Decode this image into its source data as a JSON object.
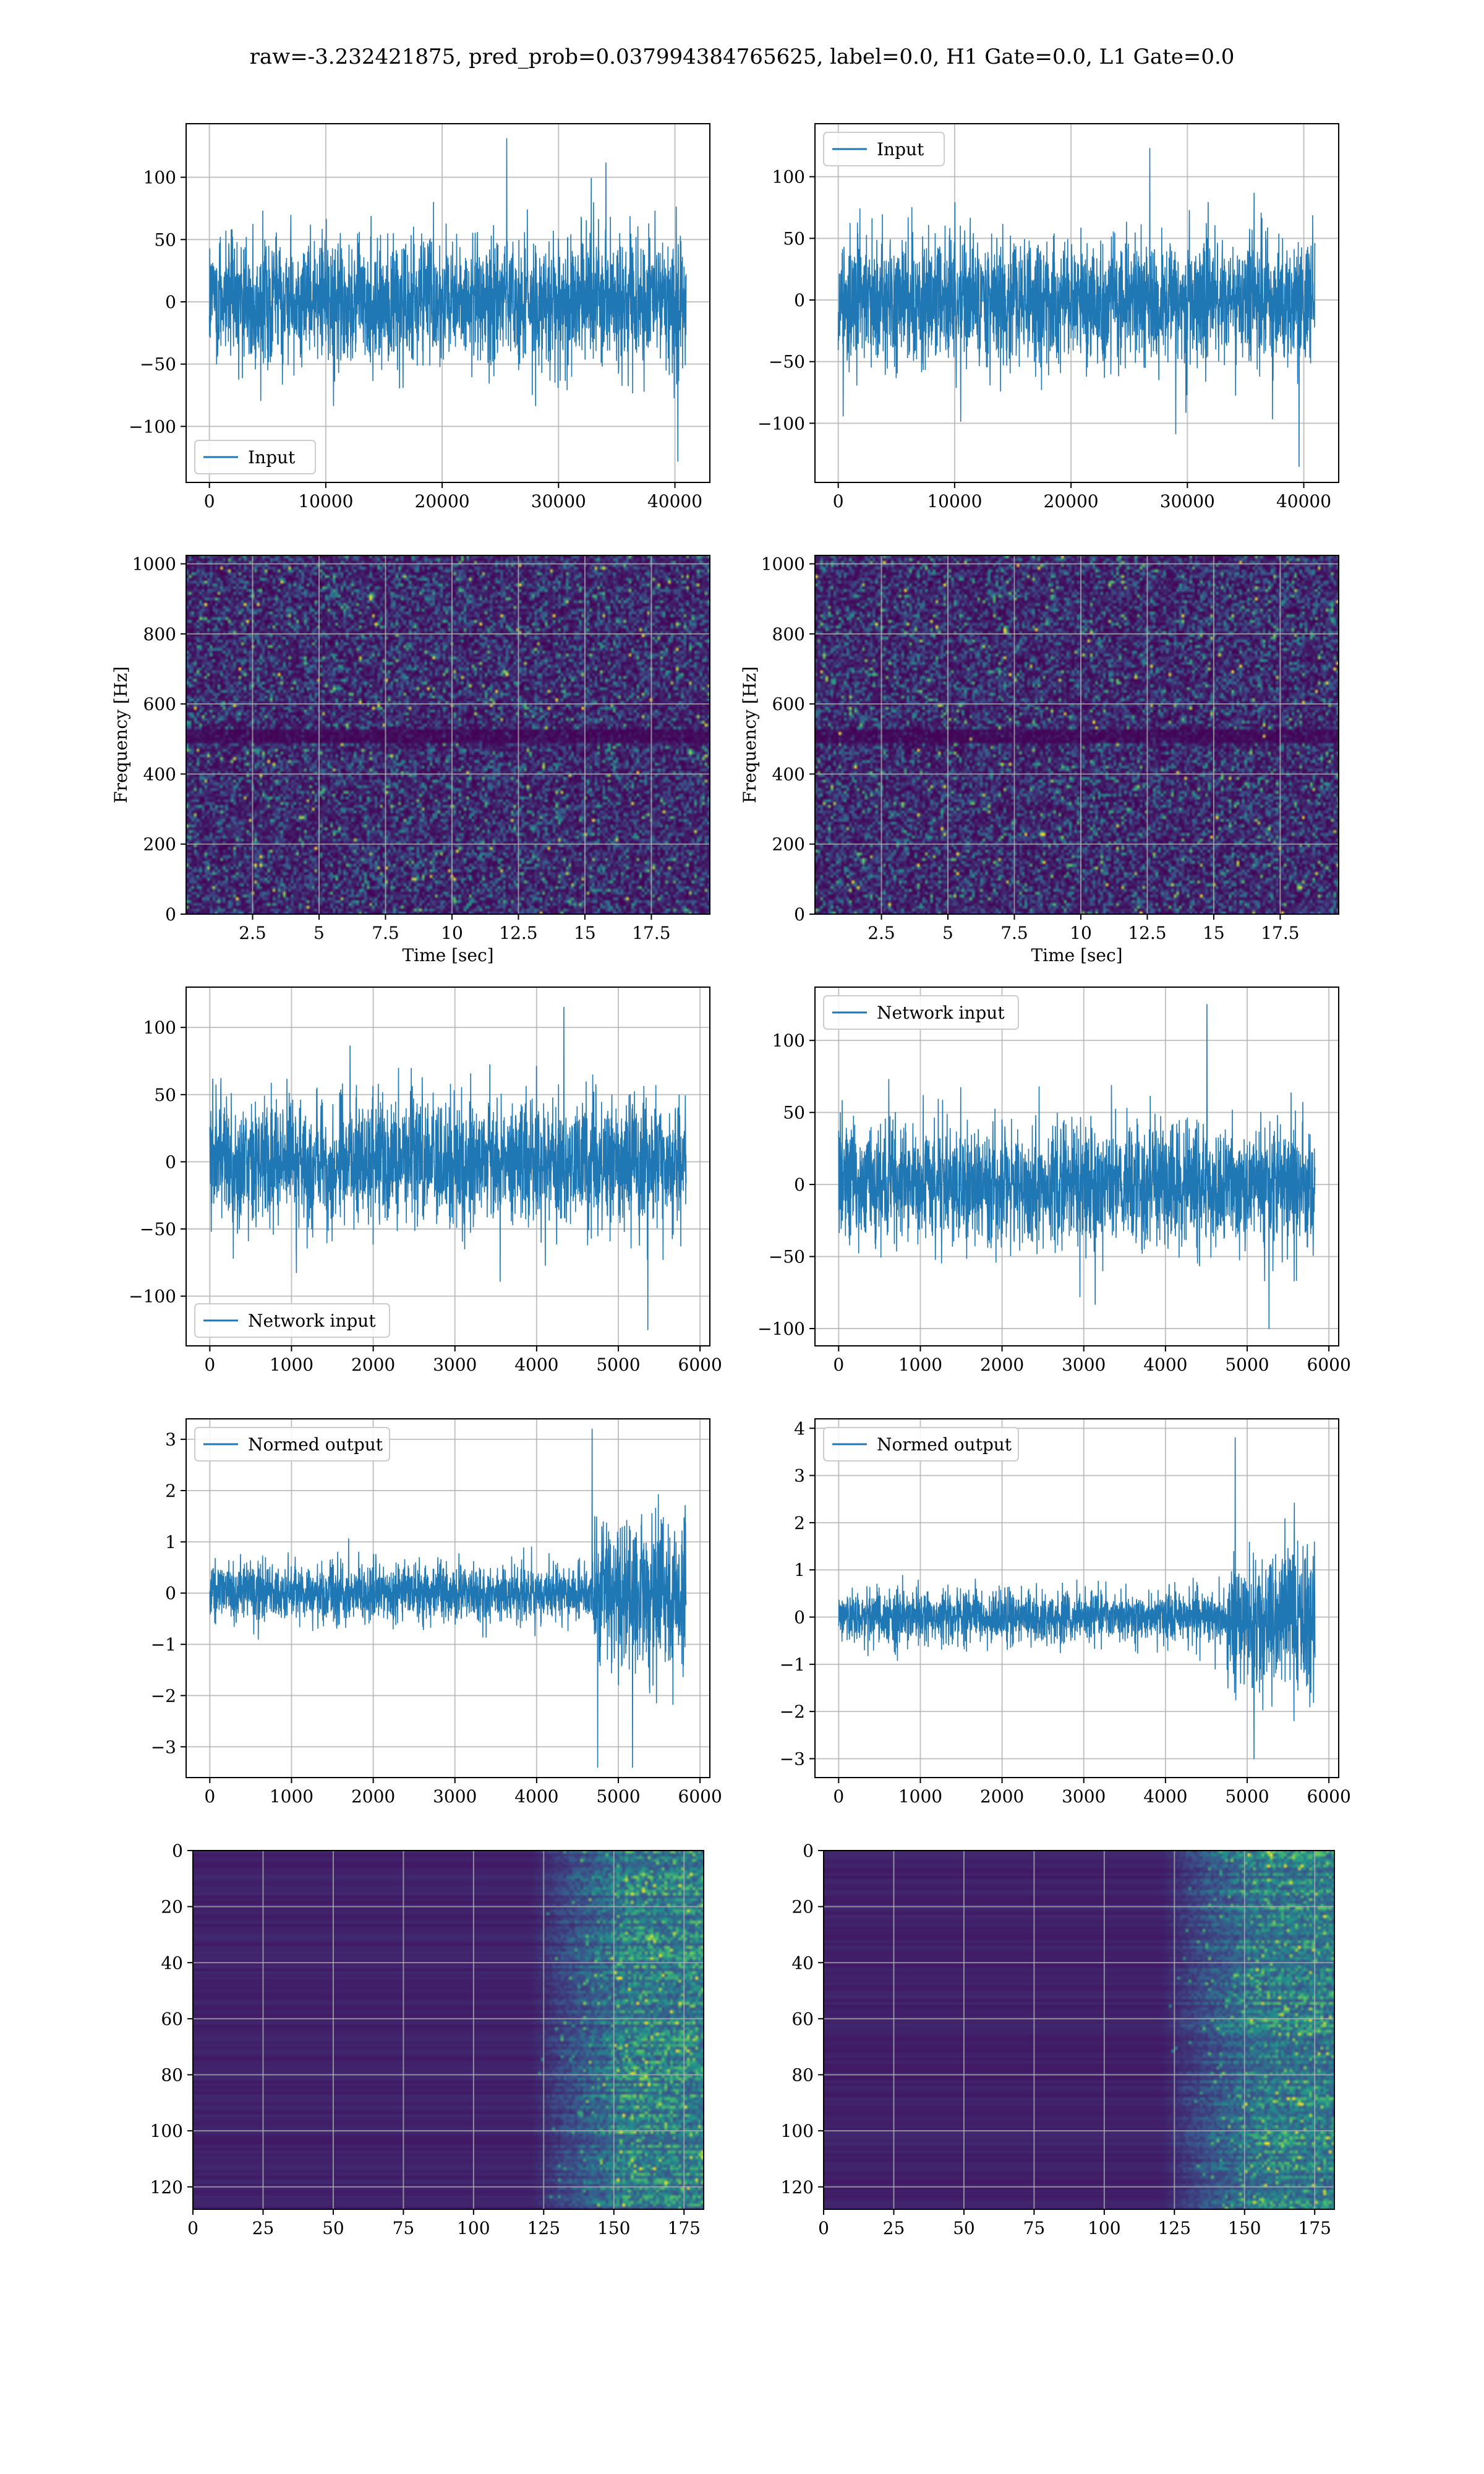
{
  "figure": {
    "suptitle": "raw=-3.232421875, pred_prob=0.037994384765625, label=0.0, H1 Gate=0.0, L1 Gate=0.0",
    "colors": {
      "series": "#1f77b4",
      "grid": "#b0b0b0",
      "viridis_low": "#440154",
      "viridis_mid": "#21918c",
      "viridis_high": "#fde725"
    }
  },
  "chart_data": [
    {
      "panel": "row1-left",
      "type": "line",
      "description": "dense noise time series",
      "series": [
        {
          "name": "Input",
          "approx_envelope_lower": -55,
          "approx_envelope_upper": 55,
          "approx_min": -128,
          "approx_max": 131
        }
      ],
      "x_range": [
        0,
        40960
      ],
      "xlim": [
        -2000,
        43000
      ],
      "ylim": [
        -145,
        143
      ],
      "xticks": [
        0,
        10000,
        20000,
        30000,
        40000
      ],
      "yticks": [
        -100,
        -50,
        0,
        50,
        100
      ],
      "legend": "lower-left",
      "grid": true
    },
    {
      "panel": "row1-right",
      "type": "line",
      "description": "dense noise time series",
      "series": [
        {
          "name": "Input",
          "approx_envelope_lower": -55,
          "approx_envelope_upper": 55,
          "approx_min": -135,
          "approx_max": 123
        }
      ],
      "x_range": [
        0,
        40960
      ],
      "xlim": [
        -2000,
        43000
      ],
      "ylim": [
        -148,
        143
      ],
      "xticks": [
        0,
        10000,
        20000,
        30000,
        40000
      ],
      "yticks": [
        -100,
        -50,
        0,
        50,
        100
      ],
      "legend": "upper-left",
      "grid": true
    },
    {
      "panel": "row2-left",
      "type": "heatmap",
      "description": "spectrogram, viridis colormap, mostly noise",
      "xlabel": "Time [sec]",
      "ylabel": "Frequency [Hz]",
      "xlim": [
        0,
        19.7
      ],
      "ylim": [
        0,
        1024
      ],
      "xticks": [
        2.5,
        5.0,
        7.5,
        10.0,
        12.5,
        15.0,
        17.5
      ],
      "yticks": [
        0,
        200,
        400,
        600,
        800,
        1000
      ],
      "grid": true
    },
    {
      "panel": "row2-right",
      "type": "heatmap",
      "description": "spectrogram, viridis colormap, mostly noise",
      "xlabel": "Time [sec]",
      "ylabel": "Frequency [Hz]",
      "xlim": [
        0,
        19.7
      ],
      "ylim": [
        0,
        1024
      ],
      "xticks": [
        2.5,
        5.0,
        7.5,
        10.0,
        12.5,
        15.0,
        17.5
      ],
      "yticks": [
        0,
        200,
        400,
        600,
        800,
        1000
      ],
      "grid": true
    },
    {
      "panel": "row3-left",
      "type": "line",
      "series": [
        {
          "name": "Network input",
          "approx_envelope_lower": -50,
          "approx_envelope_upper": 50,
          "approx_min": -125,
          "approx_max": 115
        }
      ],
      "x_range": [
        0,
        5830
      ],
      "xlim": [
        -290,
        6120
      ],
      "ylim": [
        -137,
        130
      ],
      "xticks": [
        0,
        1000,
        2000,
        3000,
        4000,
        5000,
        6000
      ],
      "yticks": [
        -100,
        -50,
        0,
        50,
        100
      ],
      "legend": "lower-left",
      "grid": true
    },
    {
      "panel": "row3-right",
      "type": "line",
      "series": [
        {
          "name": "Network input",
          "approx_envelope_lower": -45,
          "approx_envelope_upper": 45,
          "approx_min": -100,
          "approx_max": 125
        }
      ],
      "x_range": [
        0,
        5830
      ],
      "xlim": [
        -290,
        6120
      ],
      "ylim": [
        -112,
        137
      ],
      "xticks": [
        0,
        1000,
        2000,
        3000,
        4000,
        5000,
        6000
      ],
      "yticks": [
        -100,
        -50,
        0,
        50,
        100
      ],
      "legend": "upper-left",
      "grid": true
    },
    {
      "panel": "row4-left",
      "type": "line",
      "series": [
        {
          "name": "Normed output",
          "approx_envelope_lower": -0.6,
          "approx_envelope_upper": 0.6,
          "burst_start_x": 4700,
          "burst_envelope": 1.8,
          "approx_min": -3.4,
          "approx_max": 3.2
        }
      ],
      "x_range": [
        0,
        5830
      ],
      "xlim": [
        -290,
        6120
      ],
      "ylim": [
        -3.6,
        3.4
      ],
      "xticks": [
        0,
        1000,
        2000,
        3000,
        4000,
        5000,
        6000
      ],
      "yticks": [
        -3,
        -2,
        -1,
        0,
        1,
        2,
        3
      ],
      "legend": "upper-left",
      "grid": true
    },
    {
      "panel": "row4-right",
      "type": "line",
      "series": [
        {
          "name": "Normed output",
          "approx_envelope_lower": -0.6,
          "approx_envelope_upper": 0.6,
          "burst_start_x": 4750,
          "burst_envelope": 1.6,
          "approx_min": -3.0,
          "approx_max": 3.8
        }
      ],
      "x_range": [
        0,
        5830
      ],
      "xlim": [
        -290,
        6120
      ],
      "ylim": [
        -3.4,
        4.2
      ],
      "xticks": [
        0,
        1000,
        2000,
        3000,
        4000,
        5000,
        6000
      ],
      "yticks": [
        -3,
        -2,
        -1,
        0,
        1,
        2,
        3,
        4
      ],
      "legend": "upper-left",
      "grid": true
    },
    {
      "panel": "row5-left",
      "type": "heatmap",
      "description": "128 x 182 image, viridis colormap, bright activity in columns ~125-182",
      "xlim": [
        0,
        182
      ],
      "ylim": [
        128,
        0
      ],
      "xticks": [
        0,
        25,
        50,
        75,
        100,
        125,
        150,
        175
      ],
      "yticks": [
        0,
        20,
        40,
        60,
        80,
        100,
        120
      ],
      "grid": true
    },
    {
      "panel": "row5-right",
      "type": "heatmap",
      "description": "128 x 182 image, viridis colormap, bright activity in columns ~125-182",
      "xlim": [
        0,
        182
      ],
      "ylim": [
        128,
        0
      ],
      "xticks": [
        0,
        25,
        50,
        75,
        100,
        125,
        150,
        175
      ],
      "yticks": [
        0,
        20,
        40,
        60,
        80,
        100,
        120
      ],
      "grid": true
    }
  ]
}
